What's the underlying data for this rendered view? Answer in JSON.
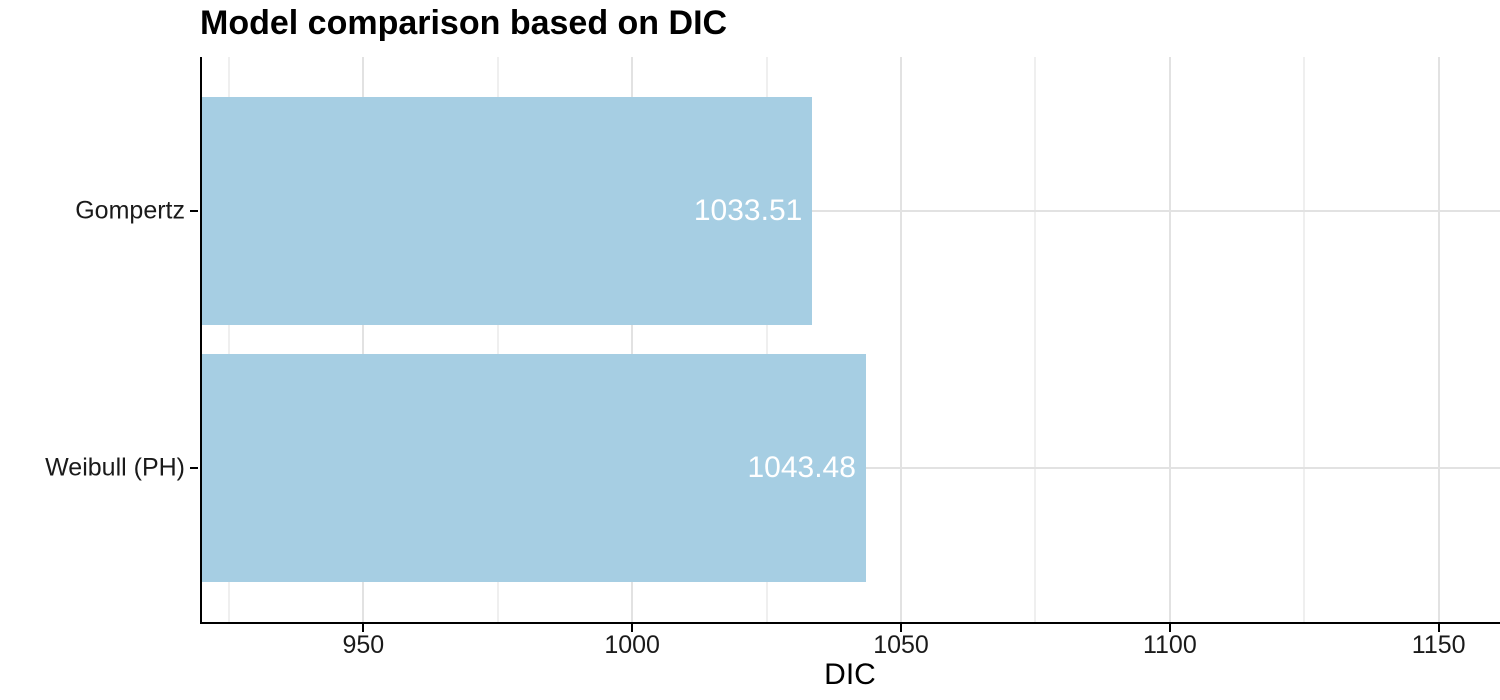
{
  "chart_data": {
    "type": "bar",
    "orientation": "horizontal",
    "title": "Model comparison based on DIC",
    "xlabel": "DIC",
    "ylabel": "",
    "categories": [
      "Gompertz",
      "Weibull (PH)"
    ],
    "values": [
      1033.51,
      1043.48
    ],
    "value_labels": [
      "1033.51",
      "1043.48"
    ],
    "xlim": [
      920,
      1161.4
    ],
    "x_major_ticks": [
      950,
      1000,
      1050,
      1100,
      1150
    ],
    "x_tick_labels": [
      "950",
      "1000",
      "1050",
      "1100",
      "1150"
    ],
    "x_minor_ticks": [
      925,
      975,
      1025,
      1075,
      1125
    ],
    "grid": "x-major-and-minor, y-major",
    "legend": "none",
    "colors": {
      "bar_fill": "#A6CEE3",
      "bar_label_text": "#FFFFFF",
      "axis_line": "#000000",
      "grid_major": "#E2E2E2",
      "grid_minor": "#EFEFEF",
      "tick_text": "#1A1A1A",
      "title_text": "#000000",
      "background": "#FFFFFF"
    }
  }
}
